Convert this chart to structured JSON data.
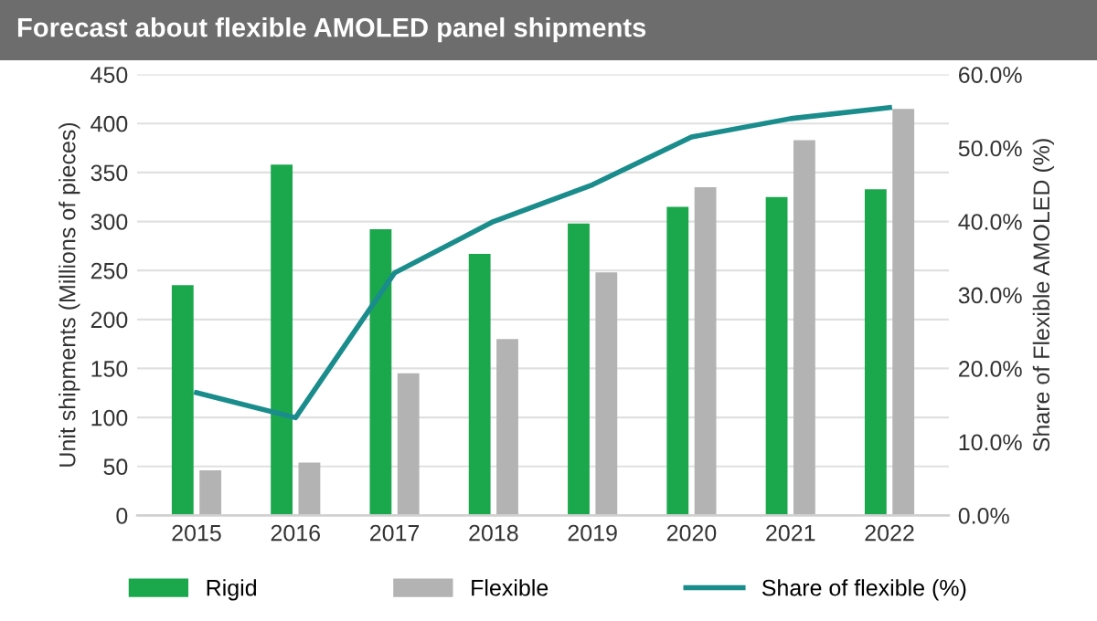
{
  "chart_data": {
    "type": "bar",
    "title": "Forecast about flexible AMOLED panel shipments",
    "ylabel": "Unit shipments (Millions of pieces)",
    "y2label": "Share of Flexible AMOLED (%)",
    "categories": [
      "2015",
      "2016",
      "2017",
      "2018",
      "2019",
      "2020",
      "2021",
      "2022"
    ],
    "series": [
      {
        "name": "Rigid",
        "color": "#1ba84c",
        "values": [
          235,
          358,
          292,
          267,
          298,
          315,
          325,
          333
        ]
      },
      {
        "name": "Flexible",
        "color": "#b3b3b3",
        "values": [
          46,
          54,
          145,
          180,
          248,
          335,
          383,
          415
        ]
      },
      {
        "name": "Share of flexible (%)",
        "type": "line",
        "axis": "y2",
        "color": "#1a8c8c",
        "values": [
          16.7,
          13.3,
          33,
          40,
          45,
          51.5,
          54,
          55.5
        ]
      }
    ],
    "ylim": [
      0,
      450
    ],
    "yticks": [
      0,
      50,
      100,
      150,
      200,
      250,
      300,
      350,
      400,
      450
    ],
    "y2lim": [
      0,
      60
    ],
    "y2ticks": [
      {
        "value": 0,
        "label": "0.0%"
      },
      {
        "value": 10,
        "label": "10.0%"
      },
      {
        "value": 20,
        "label": "20.0%"
      },
      {
        "value": 30,
        "label": "30.0%"
      },
      {
        "value": 40,
        "label": "40.0%"
      },
      {
        "value": 50,
        "label": "50.0%"
      },
      {
        "value": 60,
        "label": "60.0%"
      }
    ],
    "grid": "y",
    "legend": "bottom",
    "marker": "none",
    "line_style": "solid"
  }
}
